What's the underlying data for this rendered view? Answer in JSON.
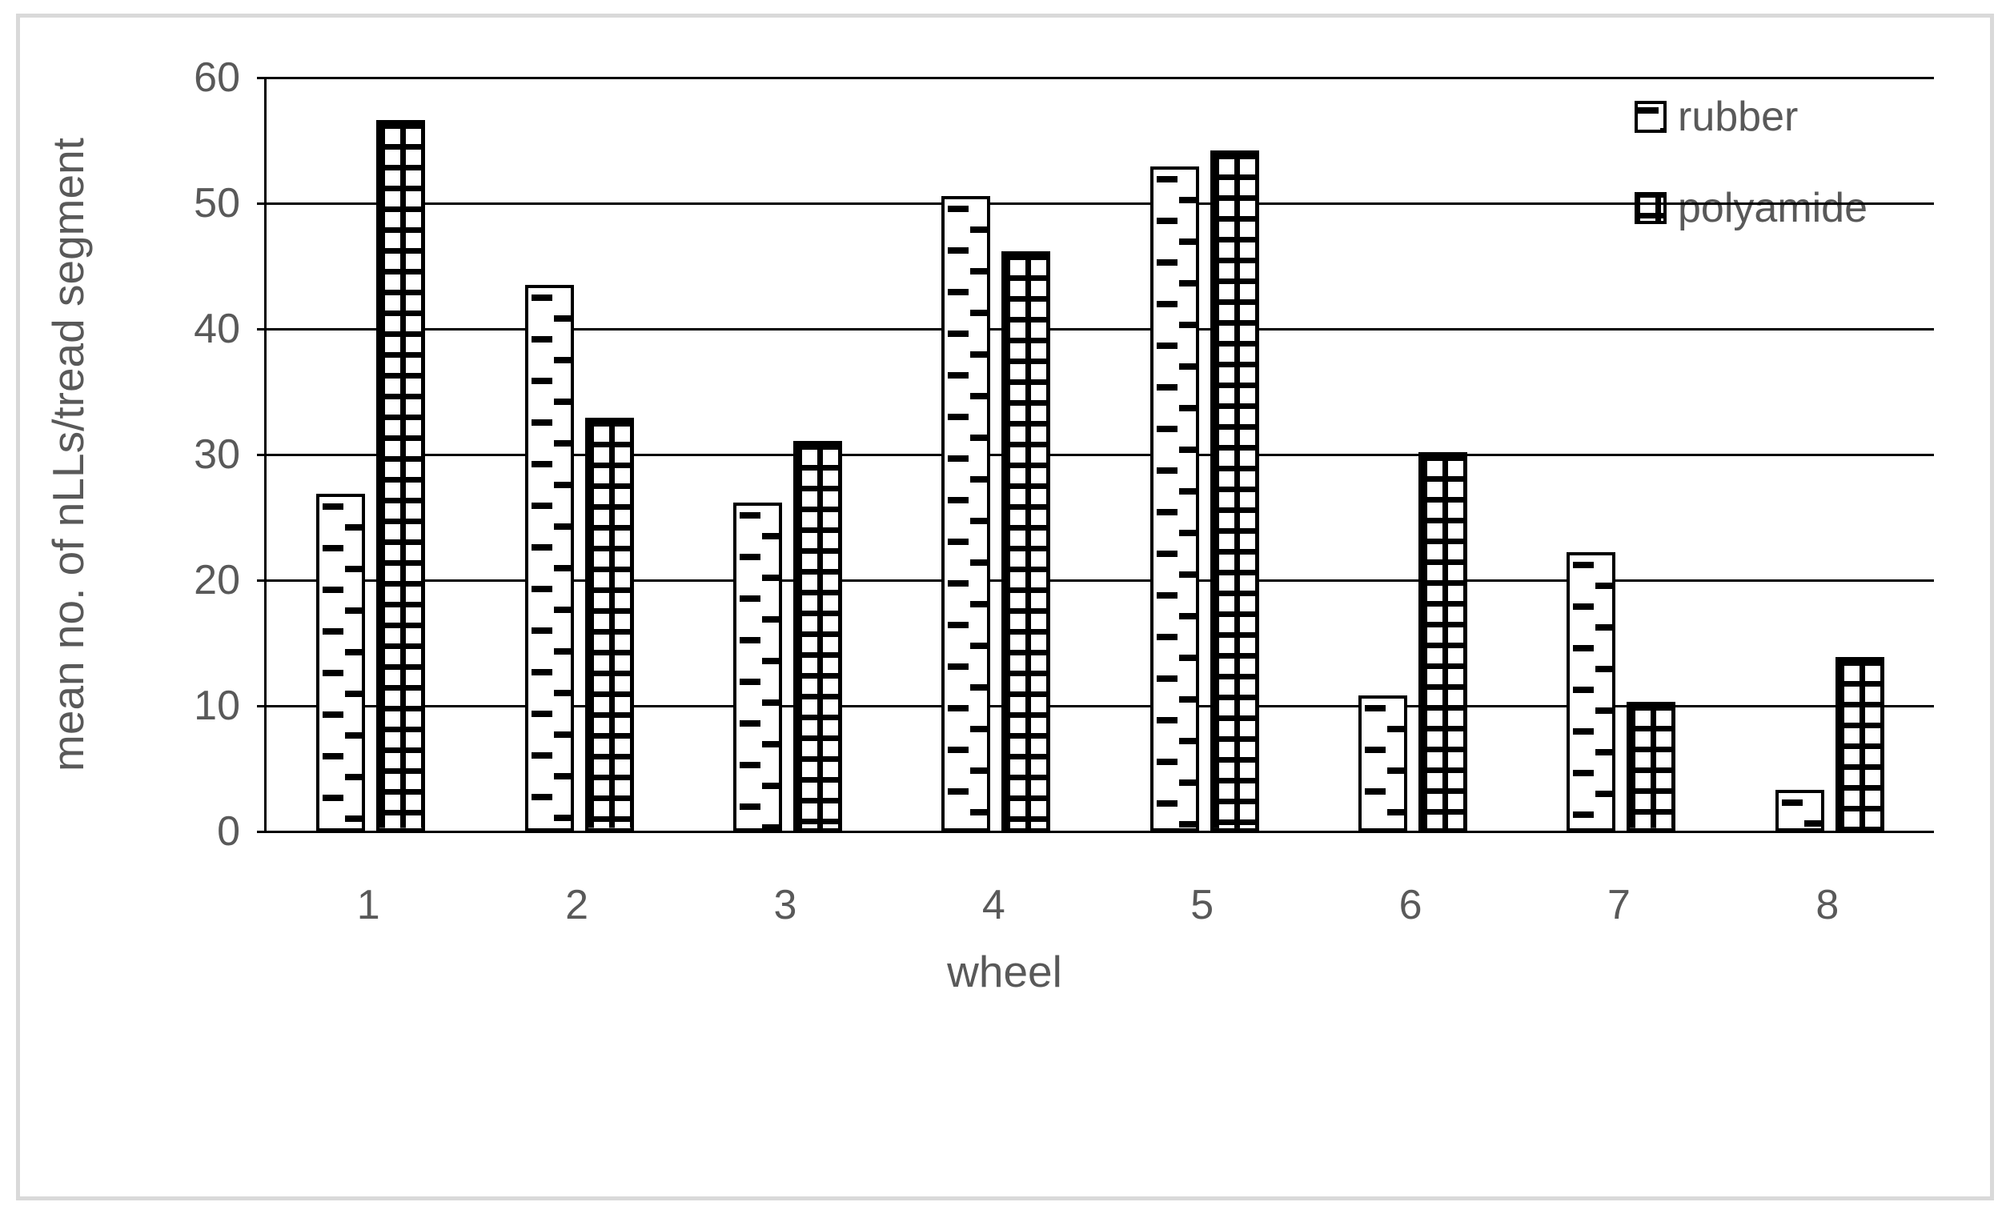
{
  "chart_data": {
    "type": "bar",
    "title": "",
    "categories": [
      "1",
      "2",
      "3",
      "4",
      "5",
      "6",
      "7",
      "8"
    ],
    "series": [
      {
        "name": "rubber",
        "pattern": "dashed-horizontal",
        "values": [
          26.9,
          43.5,
          26.2,
          50.6,
          52.9,
          10.8,
          22.2,
          3.3
        ]
      },
      {
        "name": "polyamide",
        "pattern": "small-grid",
        "values": [
          56.6,
          32.9,
          31.1,
          46.2,
          54.2,
          30.2,
          10.3,
          13.9
        ]
      }
    ],
    "xlabel": "wheel",
    "ylabel": "mean no. of nLLs/tread segment",
    "ylim": [
      0,
      60
    ],
    "ytick_step": 10,
    "yticks": [
      "0",
      "10",
      "20",
      "30",
      "40",
      "50",
      "60"
    ],
    "grid": true,
    "legend_position": "top-right"
  },
  "legend": {
    "items": [
      {
        "label": "rubber"
      },
      {
        "label": "polyamide"
      }
    ]
  },
  "colors": {
    "text": "#595959",
    "line": "#000000",
    "bar_fill": "#ffffff",
    "bar_pattern": "#000000",
    "background": "#ffffff",
    "frame_border": "#d9d9d9"
  }
}
